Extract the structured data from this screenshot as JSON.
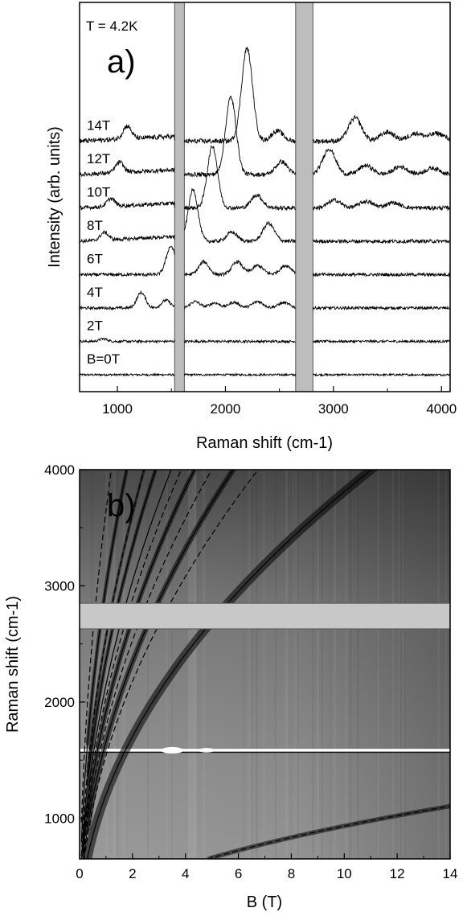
{
  "chart_data": [
    {
      "panel": "a)",
      "type": "line",
      "annotation": "T = 4.2K",
      "xlabel": "Raman shift (cm-1)",
      "ylabel": "Intensity (arb. units)",
      "xlim": [
        650,
        4080
      ],
      "x_ticks": [
        1000,
        2000,
        3000,
        4000
      ],
      "excluded_bands": [
        [
          1530,
          1620
        ],
        [
          2650,
          2810
        ]
      ],
      "series": [
        {
          "name": "B=0T",
          "field_T": 0,
          "peaks": []
        },
        {
          "name": "2T",
          "field_T": 2,
          "peaks": [
            [
              870,
              0.1
            ]
          ]
        },
        {
          "name": "4T",
          "field_T": 4,
          "peaks": [
            [
              1220,
              0.6
            ],
            [
              1450,
              0.3
            ],
            [
              1720,
              0.25
            ],
            [
              1900,
              0.2
            ],
            [
              2080,
              0.22
            ],
            [
              2300,
              0.25
            ],
            [
              2540,
              0.2
            ]
          ]
        },
        {
          "name": "6T",
          "field_T": 6,
          "peaks": [
            [
              1495,
              1.1
            ],
            [
              1800,
              0.5
            ],
            [
              2110,
              0.5
            ],
            [
              2300,
              0.35
            ],
            [
              2560,
              0.35
            ]
          ]
        },
        {
          "name": "8T",
          "field_T": 8,
          "peaks": [
            [
              880,
              0.3
            ],
            [
              1700,
              2.0
            ],
            [
              2060,
              0.35
            ],
            [
              2400,
              0.7
            ]
          ]
        },
        {
          "name": "10T",
          "field_T": 10,
          "peaks": [
            [
              940,
              0.3
            ],
            [
              1880,
              2.4
            ],
            [
              2290,
              0.5
            ],
            [
              3010,
              0.3
            ],
            [
              3300,
              0.25
            ],
            [
              3550,
              0.2
            ]
          ]
        },
        {
          "name": "12T",
          "field_T": 12,
          "peaks": [
            [
              1020,
              0.4
            ],
            [
              2050,
              3.0
            ],
            [
              2520,
              0.5
            ],
            [
              2960,
              1.0
            ],
            [
              3300,
              0.35
            ],
            [
              3620,
              0.3
            ],
            [
              3920,
              0.25
            ]
          ]
        },
        {
          "name": "14T",
          "field_T": 14,
          "peaks": [
            [
              1090,
              0.5
            ],
            [
              2200,
              3.6
            ],
            [
              2480,
              0.4
            ],
            [
              3200,
              0.9
            ],
            [
              3500,
              0.35
            ],
            [
              3760,
              0.3
            ],
            [
              3960,
              0.3
            ]
          ]
        }
      ]
    },
    {
      "panel": "b)",
      "type": "heatmap",
      "xlabel": "B (T)",
      "ylabel": "Raman shift (cm-1)",
      "xlim": [
        0,
        14
      ],
      "ylim": [
        650,
        4000
      ],
      "x_ticks": [
        0,
        2,
        4,
        6,
        8,
        10,
        12,
        14
      ],
      "y_ticks": [
        1000,
        2000,
        3000,
        4000
      ],
      "excluded_band": [
        2630,
        2850
      ],
      "phonon_line_cm": 1585,
      "fit_lines": [
        {
          "style": "solid",
          "coefficient": 1205
        },
        {
          "style": "solid",
          "coefficient": 1660
        },
        {
          "style": "solid",
          "coefficient": 1920
        },
        {
          "style": "solid",
          "coefficient": 2150
        },
        {
          "style": "solid",
          "coefficient": 2360
        },
        {
          "style": "solid",
          "coefficient": 3000
        },
        {
          "style": "dashed",
          "coefficient": 295
        },
        {
          "style": "dashed",
          "coefficient": 1540
        },
        {
          "style": "dashed",
          "coefficient": 1790
        },
        {
          "style": "dashed",
          "coefficient": 2040
        },
        {
          "style": "dashed",
          "coefficient": 2560
        },
        {
          "style": "dashed",
          "coefficient": 3650
        }
      ]
    }
  ]
}
